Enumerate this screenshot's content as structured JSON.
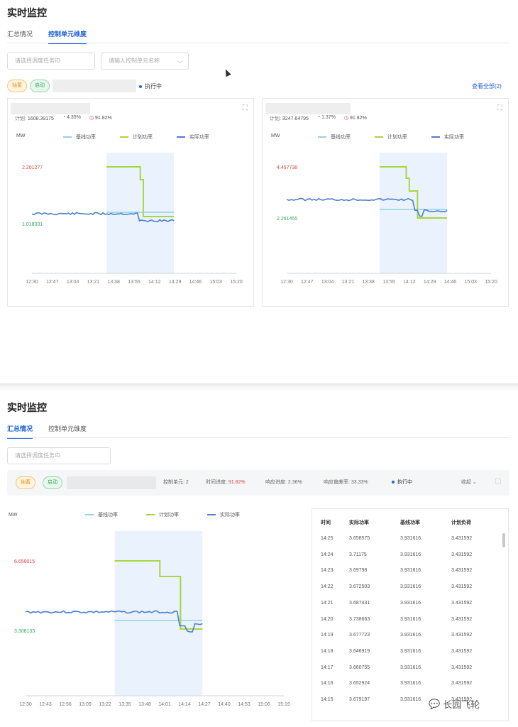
{
  "colors": {
    "accent": "#1f63d8",
    "baseline": "#8fd3e3",
    "plan": "#a8d640",
    "actual": "#4a7fd0",
    "window": "#eaf2fd",
    "max_label": "#d9434e",
    "min_label": "#2eaa5a"
  },
  "panel1": {
    "title": "实时监控",
    "tabs": [
      {
        "label": "汇总情况",
        "active": false
      },
      {
        "label": "控制单元维度",
        "active": true
      }
    ],
    "task_input_placeholder": "请选择调度任务ID",
    "unit_select_placeholder": "请输入控制单元名称",
    "tag1": "抽蓄",
    "tag2": "启动",
    "status": "执行中",
    "view_all": "查看全部(2)",
    "cards": [
      {
        "plan_label": "计划:",
        "plan_value": "1608.39175",
        "pct1": "4.35%",
        "pct2": "91.82%",
        "unit": "MW",
        "max_label": "2.201277",
        "min_label": "1.018331",
        "x_ticks": [
          "12:30",
          "12:47",
          "13:04",
          "13:21",
          "13:38",
          "13:55",
          "14:12",
          "14:29",
          "14:46",
          "15:03",
          "15:20"
        ]
      },
      {
        "plan_label": "计划:",
        "plan_value": "3247.64795",
        "pct1": "1.37%",
        "pct2": "91.82%",
        "unit": "MW",
        "max_label": "4.457738",
        "min_label": "2.261455",
        "x_ticks": [
          "12:30",
          "12:47",
          "13:04",
          "13:21",
          "13:38",
          "13:55",
          "14:12",
          "14:29",
          "14:46",
          "15:03",
          "15:20"
        ]
      }
    ]
  },
  "legend": {
    "baseline": "基线功率",
    "plan": "计划功率",
    "actual": "实际功率"
  },
  "panel2": {
    "title": "实时监控",
    "tabs": [
      {
        "label": "汇总情况",
        "active": true
      },
      {
        "label": "控制单元维度",
        "active": false
      }
    ],
    "task_input_placeholder": "请选择调度任务ID",
    "tag1": "抽蓄",
    "tag2": "启动",
    "summary": {
      "units_label": "控制单元:",
      "units_value": "2",
      "time_label": "时间进度:",
      "time_value": "91.82%",
      "resp_label": "响应进度:",
      "resp_value": "2.36%",
      "dev_label": "响应偏差率:",
      "dev_value": "33.33%",
      "status": "执行中",
      "select": "收起"
    },
    "unit": "MW",
    "max_label": "6.659015",
    "min_label": "3.308133",
    "x_ticks": [
      "12:30",
      "12:43",
      "12:56",
      "13:09",
      "13:22",
      "13:35",
      "13:48",
      "14:01",
      "14:14",
      "14:27",
      "14:40",
      "14:53",
      "15:06",
      "15:19"
    ],
    "table": {
      "headers": [
        "时间",
        "实际功率",
        "基线功率",
        "计划负荷"
      ],
      "rows": [
        [
          "14:25",
          "3.658575",
          "3.931616",
          "3.431592"
        ],
        [
          "14:24",
          "3.71175",
          "3.931616",
          "3.431592"
        ],
        [
          "14:23",
          "3.69798",
          "3.931616",
          "3.431592"
        ],
        [
          "14:22",
          "3.672503",
          "3.931616",
          "3.431592"
        ],
        [
          "14:21",
          "3.687431",
          "3.931616",
          "3.431592"
        ],
        [
          "14:20",
          "3.738663",
          "3.931616",
          "3.431592"
        ],
        [
          "14:19",
          "3.677723",
          "3.931616",
          "3.431592"
        ],
        [
          "14:18",
          "3.646919",
          "3.931616",
          "3.431592"
        ],
        [
          "14:17",
          "3.660755",
          "3.931616",
          "3.431592"
        ],
        [
          "14:16",
          "3.652924",
          "3.931616",
          "3.431592"
        ],
        [
          "14:15",
          "3.679197",
          "3.931616",
          "3.431592"
        ]
      ]
    }
  },
  "watermark": "长园飞轮"
}
